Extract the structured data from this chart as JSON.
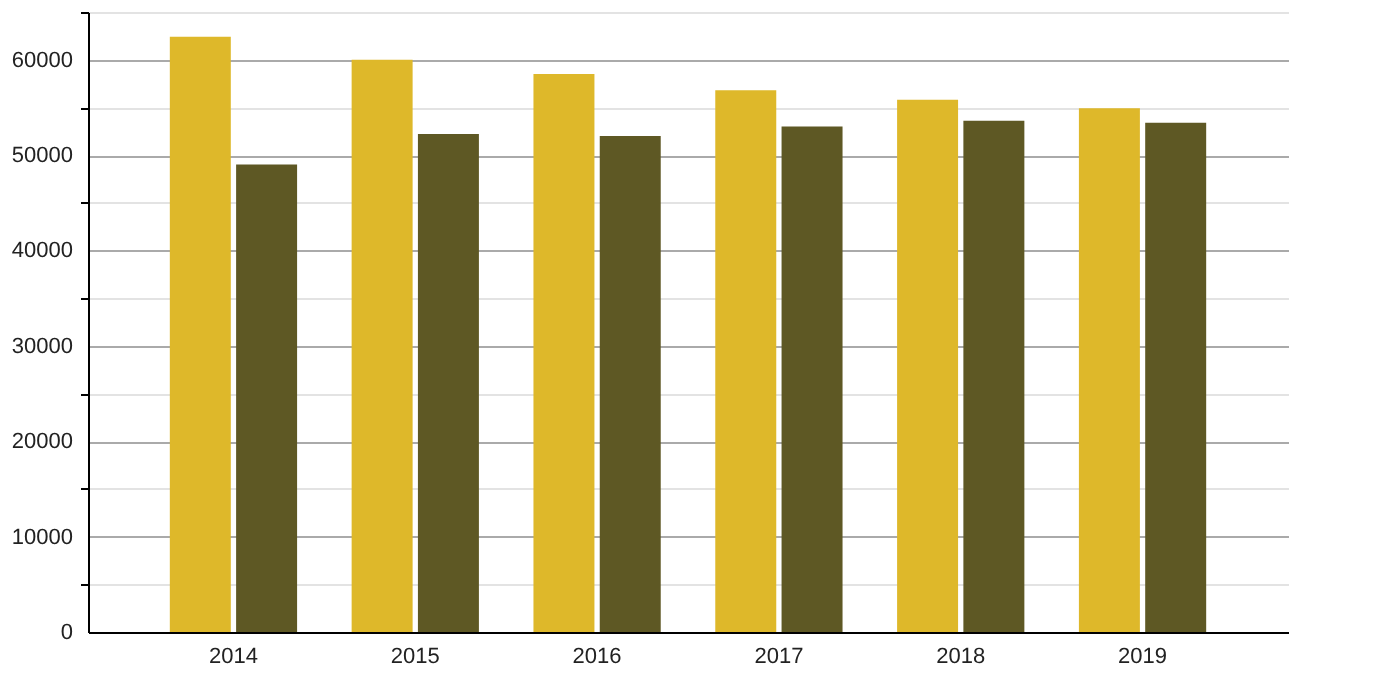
{
  "chart_data": {
    "type": "bar",
    "categories": [
      "2014",
      "2015",
      "2016",
      "2017",
      "2018",
      "2019"
    ],
    "series": [
      {
        "color": "#deb82a",
        "values": [
          62400,
          60000,
          58500,
          56800,
          55800,
          54900
        ]
      },
      {
        "color": "#5e5824",
        "values": [
          49000,
          52200,
          52000,
          53000,
          53600,
          53400
        ]
      }
    ],
    "ylim": [
      0,
      65000
    ],
    "yticks": [
      0,
      {
        "value": 5000,
        "label": null
      },
      10000,
      {
        "value": 15000,
        "label": null
      },
      20000,
      {
        "value": 25000,
        "label": null
      },
      30000,
      {
        "value": 35000,
        "label": null
      },
      40000,
      {
        "value": 45000,
        "label": null
      },
      50000,
      {
        "value": 55000,
        "label": null
      },
      60000,
      {
        "value": 65000,
        "label": null
      }
    ],
    "grid": "y",
    "legend": false
  }
}
